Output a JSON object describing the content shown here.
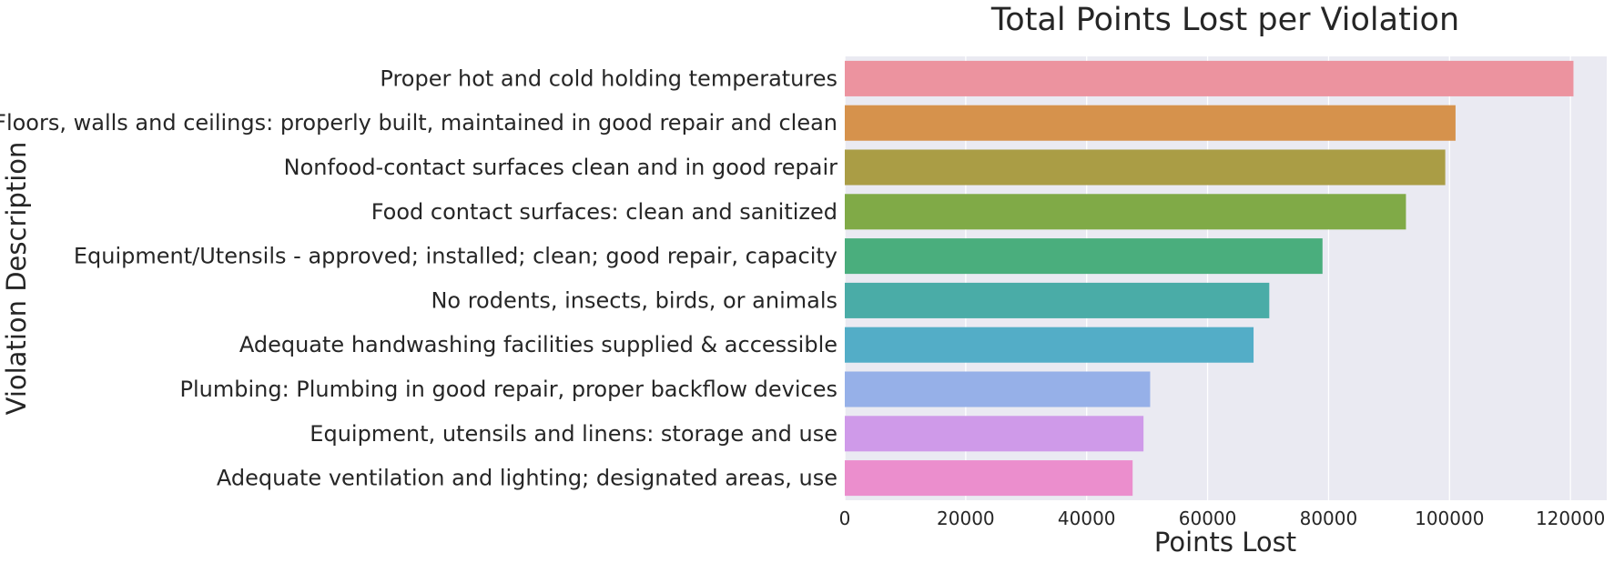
{
  "chart_data": {
    "type": "bar",
    "orientation": "horizontal",
    "title": "Total Points Lost per Violation",
    "xlabel": "Points Lost",
    "ylabel": "Violation Description",
    "xlim": [
      0,
      126000
    ],
    "xticks": [
      0,
      20000,
      40000,
      60000,
      80000,
      100000,
      120000
    ],
    "xtick_labels": [
      "0",
      "20000",
      "40000",
      "60000",
      "80000",
      "100000",
      "120000"
    ],
    "grid": true,
    "categories": [
      "Proper hot and cold holding temperatures",
      "Floors, walls and ceilings: properly built, maintained in good repair and clean",
      "Nonfood-contact surfaces clean and in good repair",
      "Food contact surfaces: clean and sanitized",
      "Equipment/Utensils - approved; installed; clean; good repair, capacity",
      "No rodents, insects, birds, or animals",
      "Adequate handwashing facilities supplied & accessible",
      "Plumbing: Plumbing in good repair, proper backflow devices",
      "Equipment, utensils and linens: storage and use",
      "Adequate ventilation and lighting; designated areas, use"
    ],
    "values": [
      120500,
      101000,
      99300,
      92800,
      79000,
      70200,
      67600,
      50500,
      49400,
      47600
    ],
    "colors": [
      "#ec939f",
      "#d6924c",
      "#aa9d45",
      "#80aa47",
      "#4aae7d",
      "#4aaca7",
      "#53adc7",
      "#96b0e8",
      "#cf9ae9",
      "#eb8ecd"
    ],
    "plot_background": "#eaeaf2",
    "grid_color": "#ffffff"
  }
}
